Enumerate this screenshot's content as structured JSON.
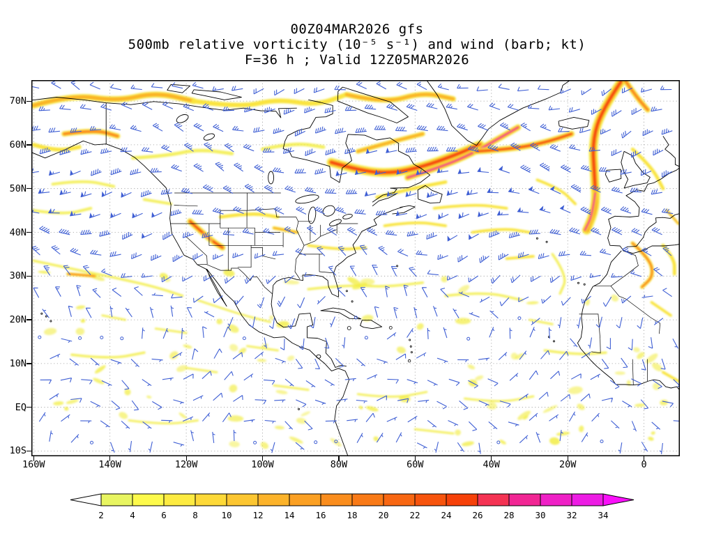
{
  "title": {
    "line1": "00Z04MAR2026 gfs",
    "line2": "500mb relative vorticity (10⁻⁵ s⁻¹) and wind (barb; kt)",
    "line3": "F=36 h ; Valid 12Z05MAR2026"
  },
  "chart_data": {
    "type": "heatmap",
    "model": "gfs",
    "init": "00Z04MAR2026",
    "forecast_hour": "F=36 h",
    "valid": "12Z05MAR2026",
    "level": "500mb",
    "field": "relative vorticity",
    "field_units": "10⁻⁵ s⁻¹",
    "wind": {
      "symbol": "barb",
      "units": "kt",
      "color": "#3f5fd4"
    },
    "grid": "dotted",
    "x_axis": {
      "lon_min": -160.6,
      "lon_max": 9.4,
      "ticks": [
        {
          "label": "160W",
          "lon": -160
        },
        {
          "label": "140W",
          "lon": -140
        },
        {
          "label": "120W",
          "lon": -120
        },
        {
          "label": "100W",
          "lon": -100
        },
        {
          "label": "80W",
          "lon": -80
        },
        {
          "label": "60W",
          "lon": -60
        },
        {
          "label": "40W",
          "lon": -40
        },
        {
          "label": "20W",
          "lon": -20
        },
        {
          "label": "0",
          "lon": 0
        }
      ]
    },
    "y_axis": {
      "lat_min": -11.2,
      "lat_max": 74.8,
      "ticks": [
        {
          "label": "70N",
          "lat": 70
        },
        {
          "label": "60N",
          "lat": 60
        },
        {
          "label": "50N",
          "lat": 50
        },
        {
          "label": "40N",
          "lat": 40
        },
        {
          "label": "30N",
          "lat": 30
        },
        {
          "label": "20N",
          "lat": 20
        },
        {
          "label": "10N",
          "lat": 10
        },
        {
          "label": "EQ",
          "lat": 0
        },
        {
          "label": "10S",
          "lat": -10
        }
      ]
    },
    "colorbar": {
      "levels": [
        2,
        4,
        6,
        8,
        10,
        12,
        14,
        16,
        18,
        20,
        22,
        24,
        26,
        28,
        30,
        32,
        34
      ],
      "colors": [
        "#e8f561",
        "#fdfa4b",
        "#fdeb41",
        "#fdd938",
        "#fcc631",
        "#fcb32a",
        "#fba023",
        "#fa8d1d",
        "#f97a17",
        "#f86712",
        "#f7540d",
        "#f64109",
        "#f43353",
        "#f12694",
        "#ef20c6",
        "#ed1ce4"
      ],
      "arrow_left_color": "#ffffff",
      "arrow_right_color": "#fa10fa",
      "outline": "#000000"
    },
    "vorticity_features": [
      {
        "path": [
          [
            -160,
            69
          ],
          [
            -150,
            71.5
          ],
          [
            -138,
            70
          ],
          [
            -128,
            72
          ],
          [
            -118,
            70
          ]
        ],
        "w": 9,
        "max": 10
      },
      {
        "path": [
          [
            -152,
            62.5
          ],
          [
            -144,
            63.5
          ],
          [
            -138,
            62
          ]
        ],
        "w": 8,
        "max": 16
      },
      {
        "path": [
          [
            -160,
            60
          ],
          [
            -154,
            58.5
          ],
          [
            -148,
            59.5
          ]
        ],
        "w": 6,
        "max": 8
      },
      {
        "path": [
          [
            -118,
            70
          ],
          [
            -106,
            68.5
          ],
          [
            -96,
            70.5
          ],
          [
            -86,
            69
          ],
          [
            -78,
            71.5
          ]
        ],
        "w": 7,
        "max": 8
      },
      {
        "path": [
          [
            -134,
            57
          ],
          [
            -125,
            57.5
          ],
          [
            -117,
            59
          ],
          [
            -108,
            58
          ]
        ],
        "w": 5,
        "max": 5
      },
      {
        "path": [
          [
            -100,
            59
          ],
          [
            -92,
            60.5
          ],
          [
            -84,
            59.5
          ]
        ],
        "w": 5,
        "max": 5
      },
      {
        "path": [
          [
            -78,
            71.5
          ],
          [
            -68,
            69.5
          ],
          [
            -58,
            72
          ],
          [
            -50,
            70.5
          ]
        ],
        "w": 8,
        "max": 12
      },
      {
        "path": [
          [
            -82,
            56
          ],
          [
            -74,
            54
          ],
          [
            -66,
            53.5
          ],
          [
            -58,
            55
          ],
          [
            -50,
            57.5
          ],
          [
            -43,
            60
          ]
        ],
        "w": 13,
        "max": 22
      },
      {
        "path": [
          [
            -62,
            52.5
          ],
          [
            -53,
            55
          ],
          [
            -45,
            58
          ],
          [
            -38,
            61.5
          ],
          [
            -33,
            64
          ]
        ],
        "w": 9,
        "max": 31
      },
      {
        "path": [
          [
            -75,
            58.5
          ],
          [
            -67,
            60.5
          ],
          [
            -58,
            62.5
          ]
        ],
        "w": 7,
        "max": 14
      },
      {
        "path": [
          [
            -70,
            48
          ],
          [
            -61,
            50
          ],
          [
            -52,
            51.5
          ]
        ],
        "w": 5,
        "max": 9
      },
      {
        "path": [
          [
            -44,
            58.5
          ],
          [
            -35,
            59
          ],
          [
            -26,
            60.5
          ],
          [
            -19,
            62.5
          ]
        ],
        "w": 9,
        "max": 24
      },
      {
        "path": [
          [
            -6,
            74.5
          ],
          [
            -11,
            68
          ],
          [
            -13.5,
            61
          ],
          [
            -13,
            53
          ],
          [
            -12.5,
            46
          ],
          [
            -15,
            40.5
          ]
        ],
        "w": 13,
        "max": 27
      },
      {
        "path": [
          [
            -12.8,
            49
          ],
          [
            -13.5,
            44
          ],
          [
            -15.5,
            40.5
          ]
        ],
        "w": 8,
        "max": 33
      },
      {
        "path": [
          [
            -5,
            74.8
          ],
          [
            -2,
            71
          ],
          [
            1,
            68
          ]
        ],
        "w": 8,
        "max": 18
      },
      {
        "path": [
          [
            -119,
            42.5
          ],
          [
            -114,
            38.5
          ],
          [
            -110.5,
            36.5
          ]
        ],
        "w": 9,
        "max": 22
      },
      {
        "path": [
          [
            -115.5,
            39.5
          ],
          [
            -113.5,
            38.2
          ]
        ],
        "w": 5,
        "max": 33
      },
      {
        "path": [
          [
            -111,
            43.5
          ],
          [
            -103,
            44.5
          ],
          [
            -96,
            43.5
          ]
        ],
        "w": 5,
        "max": 6
      },
      {
        "path": [
          [
            -97,
            41
          ],
          [
            -91,
            40
          ]
        ],
        "w": 5,
        "max": 14
      },
      {
        "path": [
          [
            -88,
            37
          ],
          [
            -80,
            36
          ],
          [
            -73,
            36.5
          ]
        ],
        "w": 4,
        "max": 6
      },
      {
        "path": [
          [
            -151,
            30.5
          ],
          [
            -144,
            30
          ]
        ],
        "w": 5,
        "max": 16
      },
      {
        "path": [
          [
            -160,
            33.5
          ],
          [
            -149,
            31.5
          ],
          [
            -138,
            29.5
          ],
          [
            -128,
            27.5
          ],
          [
            -121,
            25.5
          ]
        ],
        "w": 3.5,
        "max": 5
      },
      {
        "path": [
          [
            -117,
            24.5
          ],
          [
            -107,
            21.5
          ],
          [
            -98,
            19.5
          ]
        ],
        "w": 3,
        "max": 4
      },
      {
        "path": [
          [
            -88,
            27
          ],
          [
            -78,
            28
          ],
          [
            -68,
            27.5
          ],
          [
            -58,
            28.5
          ]
        ],
        "w": 3.5,
        "max": 5
      },
      {
        "path": [
          [
            -52,
            25.5
          ],
          [
            -42,
            26.5
          ],
          [
            -32,
            24.5
          ]
        ],
        "w": 3.5,
        "max": 5
      },
      {
        "path": [
          [
            -36,
            34
          ],
          [
            -29,
            34.5
          ]
        ],
        "w": 4,
        "max": 7
      },
      {
        "path": [
          [
            -55,
            45.5
          ],
          [
            -45,
            46.5
          ],
          [
            -36,
            45.5
          ]
        ],
        "w": 4,
        "max": 6
      },
      {
        "path": [
          [
            -3,
            37.5
          ],
          [
            1.5,
            34
          ],
          [
            2.5,
            30
          ],
          [
            -0.5,
            27.5
          ]
        ],
        "w": 6,
        "max": 17
      },
      {
        "path": [
          [
            5,
            37
          ],
          [
            8,
            34
          ],
          [
            8,
            30.5
          ]
        ],
        "w": 5,
        "max": 9
      },
      {
        "path": [
          [
            2,
            24
          ],
          [
            7,
            21
          ]
        ],
        "w": 4,
        "max": 6
      },
      {
        "path": [
          [
            -26,
            13
          ],
          [
            -18,
            12
          ],
          [
            -10,
            12.5
          ]
        ],
        "w": 3.5,
        "max": 4
      },
      {
        "path": [
          [
            -150,
            12
          ],
          [
            -140,
            11
          ],
          [
            -131,
            12.5
          ]
        ],
        "w": 3.5,
        "max": 4
      },
      {
        "path": [
          [
            -120,
            9
          ],
          [
            -112,
            8
          ]
        ],
        "w": 3,
        "max": 4
      },
      {
        "path": [
          [
            -75,
            3
          ],
          [
            -66,
            2
          ],
          [
            -57,
            3.5
          ]
        ],
        "w": 3,
        "max": 4
      },
      {
        "path": [
          [
            -47,
            2
          ],
          [
            -38,
            1
          ],
          [
            -29,
            2.5
          ]
        ],
        "w": 3,
        "max": 4
      },
      {
        "path": [
          [
            -97,
            5
          ],
          [
            -88,
            4
          ]
        ],
        "w": 3,
        "max": 4
      },
      {
        "path": [
          [
            -135,
            -3
          ],
          [
            -126,
            -4
          ],
          [
            -117,
            -3
          ]
        ],
        "w": 3,
        "max": 4
      },
      {
        "path": [
          [
            -60,
            -5
          ],
          [
            -50,
            -6
          ]
        ],
        "w": 3,
        "max": 4
      },
      {
        "path": [
          [
            5,
            8
          ],
          [
            9,
            6
          ]
        ],
        "w": 4,
        "max": 6
      },
      {
        "path": [
          [
            -24,
            35
          ],
          [
            -20,
            30
          ],
          [
            -22,
            26
          ]
        ],
        "w": 3.5,
        "max": 5
      },
      {
        "path": [
          [
            -45,
            40
          ],
          [
            -37,
            41
          ],
          [
            -30,
            40
          ]
        ],
        "w": 4,
        "max": 6
      },
      {
        "path": [
          [
            -68,
            41.5
          ],
          [
            -60,
            42.5
          ],
          [
            -52,
            41.5
          ]
        ],
        "w": 4,
        "max": 6
      },
      {
        "path": [
          [
            -28,
            52
          ],
          [
            -22,
            50
          ],
          [
            -18,
            46.5
          ]
        ],
        "w": 4,
        "max": 7
      },
      {
        "path": [
          [
            -160,
            45
          ],
          [
            -152,
            44
          ],
          [
            -145,
            45.5
          ]
        ],
        "w": 4,
        "max": 5
      },
      {
        "path": [
          [
            -155,
            51
          ],
          [
            -147,
            52
          ],
          [
            -139,
            50.5
          ]
        ],
        "w": 4,
        "max": 5
      },
      {
        "path": [
          [
            -131,
            47.5
          ],
          [
            -124,
            46.5
          ]
        ],
        "w": 4,
        "max": 5
      },
      {
        "path": [
          [
            -3,
            59
          ],
          [
            2,
            55
          ],
          [
            5,
            50
          ]
        ],
        "w": 5,
        "max": 8
      },
      {
        "path": [
          [
            6,
            45
          ],
          [
            9,
            42
          ]
        ],
        "w": 4,
        "max": 10
      },
      {
        "path": [
          [
            -30,
            20
          ],
          [
            -24,
            19
          ]
        ],
        "w": 3,
        "max": 4
      },
      {
        "path": [
          [
            -104,
            14
          ],
          [
            -96,
            13
          ]
        ],
        "w": 3,
        "max": 4
      },
      {
        "path": [
          [
            -128,
            18
          ],
          [
            -120,
            17
          ]
        ],
        "w": 3,
        "max": 4
      },
      {
        "path": [
          [
            -142,
            21
          ],
          [
            -136,
            20
          ]
        ],
        "w": 3,
        "max": 4
      }
    ]
  }
}
